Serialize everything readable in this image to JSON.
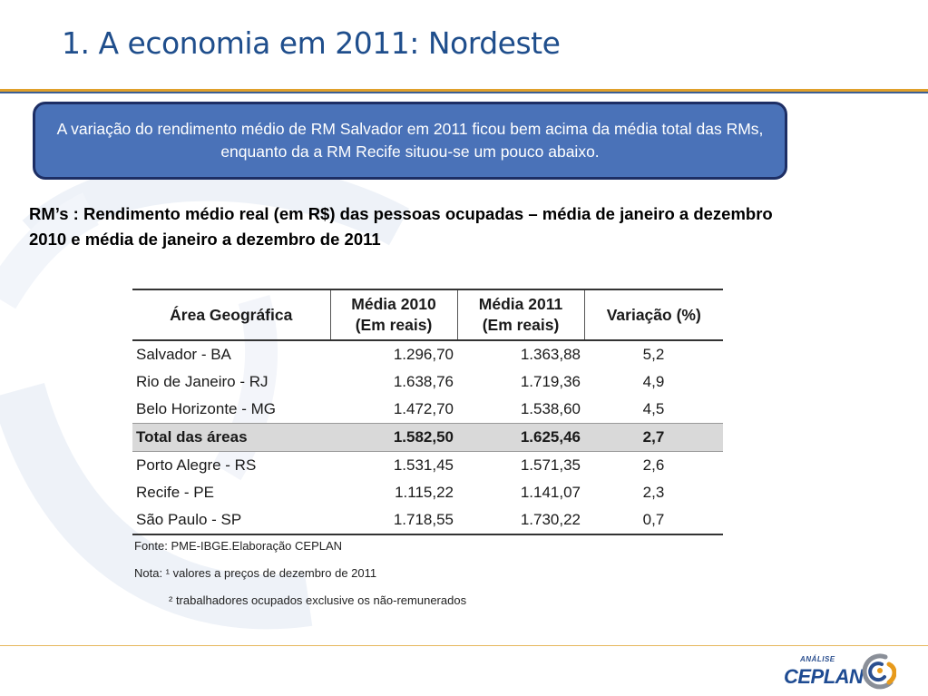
{
  "slide": {
    "title": "1. A economia em 2011: Nordeste",
    "callout": "A variação do rendimento médio de RM Salvador em 2011 ficou bem acima da média total das RMs, enquanto da a RM Recife situou-se um pouco abaixo.",
    "table_title": "RM’s : Rendimento médio real (em R$) das pessoas ocupadas – média de janeiro a dezembro 2010 e média de janeiro a dezembro de 2011"
  },
  "table": {
    "headers": {
      "area": "Área Geográfica",
      "y2010_line1": "Média 2010",
      "y2010_line2": "(Em reais)",
      "y2011_line1": "Média 2011",
      "y2011_line2": "(Em reais)",
      "variation": "Variação (%)"
    },
    "rows": [
      {
        "area": "Salvador - BA",
        "y2010": "1.296,70",
        "y2011": "1.363,88",
        "var": "5,2"
      },
      {
        "area": "Rio de Janeiro - RJ",
        "y2010": "1.638,76",
        "y2011": "1.719,36",
        "var": "4,9"
      },
      {
        "area": "Belo Horizonte - MG",
        "y2010": "1.472,70",
        "y2011": "1.538,60",
        "var": "4,5"
      },
      {
        "area": "Total das áreas",
        "y2010": "1.582,50",
        "y2011": "1.625,46",
        "var": "2,7"
      },
      {
        "area": "Porto Alegre - RS",
        "y2010": "1.531,45",
        "y2011": "1.571,35",
        "var": "2,6"
      },
      {
        "area": "Recife - PE",
        "y2010": "1.115,22",
        "y2011": "1.141,07",
        "var": "2,3"
      },
      {
        "area": "São Paulo - SP",
        "y2010": "1.718,55",
        "y2011": "1.730,22",
        "var": "0,7"
      }
    ],
    "notes": {
      "source": "Fonte: PME-IBGE.Elaboração CEPLAN",
      "note1": "Nota: ¹ valores a preços de dezembro de 2011",
      "note2": "² trabalhadores ocupados exclusive os não-remunerados"
    }
  },
  "footer": {
    "logo_small": "ANÁLISE",
    "logo_main": "CEPLAN"
  },
  "colors": {
    "title": "#1f4e8c",
    "callout_bg": "#4a72b8",
    "callout_border": "#1d2e64",
    "accent_orange": "#e0a02a",
    "total_row_bg": "#d9d9d9"
  }
}
